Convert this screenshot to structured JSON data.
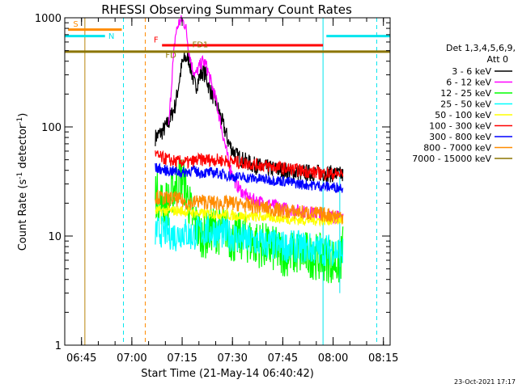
{
  "chart_data": {
    "type": "line",
    "title": "RHESSI Observing Summary Count Rates",
    "xlabel": "Start Time (21-May-14 06:40:42)",
    "ylabel_parts": [
      "Count Rate (s",
      "-1",
      " detector",
      "-1",
      ")"
    ],
    "yscale": "log",
    "ylim": [
      1,
      1000
    ],
    "xlim_minutes_after_0640": [
      0,
      97
    ],
    "x_ticks": [
      {
        "label": "06:45",
        "min": 5
      },
      {
        "label": "07:00",
        "min": 20
      },
      {
        "label": "07:15",
        "min": 35
      },
      {
        "label": "07:30",
        "min": 50
      },
      {
        "label": "07:45",
        "min": 65
      },
      {
        "label": "08:00",
        "min": 80
      },
      {
        "label": "08:15",
        "min": 95
      }
    ],
    "y_ticks": [
      {
        "label": "1",
        "value": 1
      },
      {
        "label": "10",
        "value": 10
      },
      {
        "label": "100",
        "value": 100
      },
      {
        "label": "1000",
        "value": 1000
      }
    ],
    "legend_header": [
      "Det 1,3,4,5,6,9,",
      "Att 0"
    ],
    "legend_placement": "right",
    "series": [
      {
        "name": "3 - 6 keV",
        "color": "#000000",
        "noise": 0.08,
        "points": [
          [
            27,
            80
          ],
          [
            29,
            90
          ],
          [
            31,
            110
          ],
          [
            33,
            160
          ],
          [
            34,
            250
          ],
          [
            35,
            380
          ],
          [
            36,
            430
          ],
          [
            37,
            420
          ],
          [
            38,
            300
          ],
          [
            39,
            230
          ],
          [
            40,
            280
          ],
          [
            41,
            320
          ],
          [
            42,
            300
          ],
          [
            43,
            230
          ],
          [
            45,
            170
          ],
          [
            47,
            110
          ],
          [
            49,
            70
          ],
          [
            51,
            55
          ],
          [
            53,
            50
          ],
          [
            56,
            45
          ],
          [
            60,
            42
          ],
          [
            65,
            40
          ],
          [
            70,
            38
          ],
          [
            75,
            38
          ],
          [
            80,
            37
          ],
          [
            83,
            36
          ]
        ]
      },
      {
        "name": "6 - 12 keV",
        "color": "#ff00ff",
        "noise": 0.06,
        "points": [
          [
            31,
            100
          ],
          [
            32,
            300
          ],
          [
            33,
            700
          ],
          [
            34,
            900
          ],
          [
            35,
            950
          ],
          [
            36,
            850
          ],
          [
            37,
            500
          ],
          [
            38,
            350
          ],
          [
            39,
            300
          ],
          [
            40,
            350
          ],
          [
            41,
            400
          ],
          [
            42,
            380
          ],
          [
            43,
            300
          ],
          [
            45,
            180
          ],
          [
            47,
            90
          ],
          [
            49,
            45
          ],
          [
            51,
            30
          ],
          [
            53,
            25
          ],
          [
            55,
            22
          ],
          [
            60,
            20
          ],
          [
            65,
            18
          ],
          [
            70,
            17
          ],
          [
            75,
            16
          ],
          [
            80,
            15
          ],
          [
            83,
            15
          ]
        ]
      },
      {
        "name": "12 - 25 keV",
        "color": "#00ff00",
        "noise": 0.22,
        "points": [
          [
            27,
            25
          ],
          [
            29,
            20
          ],
          [
            31,
            20
          ],
          [
            33,
            30
          ],
          [
            35,
            35
          ],
          [
            36,
            28
          ],
          [
            37,
            20
          ],
          [
            38,
            15
          ],
          [
            40,
            11
          ],
          [
            42,
            10
          ],
          [
            44,
            12
          ],
          [
            46,
            11
          ],
          [
            48,
            12
          ],
          [
            50,
            9
          ],
          [
            52,
            10
          ],
          [
            55,
            9
          ],
          [
            60,
            8
          ],
          [
            65,
            7
          ],
          [
            70,
            7
          ],
          [
            75,
            6.5
          ],
          [
            80,
            6
          ],
          [
            82,
            5.5
          ],
          [
            83,
            8
          ]
        ]
      },
      {
        "name": "25 - 50 keV",
        "color": "#00ffff",
        "noise": 0.15,
        "points": [
          [
            27,
            11
          ],
          [
            30,
            11
          ],
          [
            33,
            10
          ],
          [
            35,
            11
          ],
          [
            38,
            10
          ],
          [
            40,
            11
          ],
          [
            45,
            11
          ],
          [
            50,
            10
          ],
          [
            55,
            9
          ],
          [
            60,
            8.5
          ],
          [
            65,
            8
          ],
          [
            70,
            8
          ],
          [
            75,
            7.5
          ],
          [
            80,
            7.5
          ],
          [
            83,
            7
          ]
        ]
      },
      {
        "name": "50 - 100 keV",
        "color": "#ffff00",
        "noise": 0.05,
        "points": [
          [
            27,
            17
          ],
          [
            35,
            17
          ],
          [
            40,
            16
          ],
          [
            45,
            16
          ],
          [
            50,
            15.5
          ],
          [
            55,
            15
          ],
          [
            60,
            15
          ],
          [
            65,
            14.5
          ],
          [
            70,
            14
          ],
          [
            75,
            14
          ],
          [
            80,
            14
          ],
          [
            83,
            14
          ]
        ]
      },
      {
        "name": "100 - 300 keV",
        "color": "#ff0000",
        "noise": 0.06,
        "points": [
          [
            27,
            55
          ],
          [
            29,
            52
          ],
          [
            31,
            50
          ],
          [
            33,
            48
          ],
          [
            35,
            48
          ],
          [
            37,
            47
          ],
          [
            40,
            50
          ],
          [
            45,
            50
          ],
          [
            50,
            48
          ],
          [
            55,
            46
          ],
          [
            60,
            44
          ],
          [
            65,
            42
          ],
          [
            70,
            40
          ],
          [
            75,
            38
          ],
          [
            80,
            37
          ],
          [
            83,
            37
          ]
        ]
      },
      {
        "name": "300 - 800 keV",
        "color": "#0000ff",
        "noise": 0.05,
        "points": [
          [
            27,
            42
          ],
          [
            30,
            40
          ],
          [
            33,
            39
          ],
          [
            35,
            38
          ],
          [
            38,
            40
          ],
          [
            40,
            38
          ],
          [
            45,
            38
          ],
          [
            50,
            35
          ],
          [
            55,
            34
          ],
          [
            60,
            33
          ],
          [
            65,
            32
          ],
          [
            70,
            30
          ],
          [
            75,
            29
          ],
          [
            80,
            28
          ],
          [
            83,
            28
          ]
        ]
      },
      {
        "name": "800 - 7000 keV",
        "color": "#ff8c00",
        "noise": 0.07,
        "points": [
          [
            27,
            23
          ],
          [
            30,
            22
          ],
          [
            33,
            22
          ],
          [
            35,
            21
          ],
          [
            38,
            20
          ],
          [
            40,
            21
          ],
          [
            45,
            20
          ],
          [
            50,
            20
          ],
          [
            55,
            19
          ],
          [
            60,
            18
          ],
          [
            65,
            17
          ],
          [
            70,
            16.5
          ],
          [
            75,
            16
          ],
          [
            80,
            15.5
          ],
          [
            83,
            15
          ]
        ]
      },
      {
        "name": "7000 - 15000 keV",
        "color": "#8b7500",
        "noise": 0,
        "points": []
      }
    ],
    "attenuator_bars": [
      {
        "label": "S",
        "color": "#ff8c00",
        "start": 1,
        "end": 17,
        "value": 780
      },
      {
        "label": "N",
        "color": "#00e5ee",
        "start": 0,
        "end": 12,
        "value": 680
      },
      {
        "label": "N",
        "color": "#00e5ee",
        "start": 78,
        "end": 97,
        "value": 680
      },
      {
        "label": "F",
        "color": "#ff0000",
        "start": 29,
        "end": 77,
        "value": 560
      },
      {
        "label": "FD1",
        "color": "#8b7500",
        "start": 0,
        "end": 97,
        "value": 490
      }
    ],
    "bar_labels": [
      {
        "text": "S",
        "color": "#ff8c00",
        "min": 2.5,
        "value": 830
      },
      {
        "text": "N",
        "color": "#00e5ee",
        "min": 13,
        "value": 640
      },
      {
        "text": "F",
        "color": "#ff0000",
        "min": 26.5,
        "value": 595
      },
      {
        "text": "FD1",
        "color": "#8b7500",
        "min": 38,
        "value": 535
      },
      {
        "text": "FD",
        "color": "#8b7500",
        "min": 30,
        "value": 430
      }
    ],
    "vertical_markers": [
      {
        "min": 0,
        "color": "#00e5ee",
        "style": "solid"
      },
      {
        "min": 6,
        "color": "#b8860b",
        "style": "solid"
      },
      {
        "min": 17.5,
        "color": "#00e5ee",
        "style": "dashed"
      },
      {
        "min": 24,
        "color": "#ff8c00",
        "style": "dashed"
      },
      {
        "min": 77,
        "color": "#00e5ee",
        "style": "solid"
      },
      {
        "min": 93,
        "color": "#00e5ee",
        "style": "dashed"
      }
    ],
    "end_segment": {
      "min": 82,
      "bottom": 3,
      "top": 40,
      "color": "#00e5ee"
    }
  },
  "footer_timestamp": "23-Oct-2021 17:17"
}
